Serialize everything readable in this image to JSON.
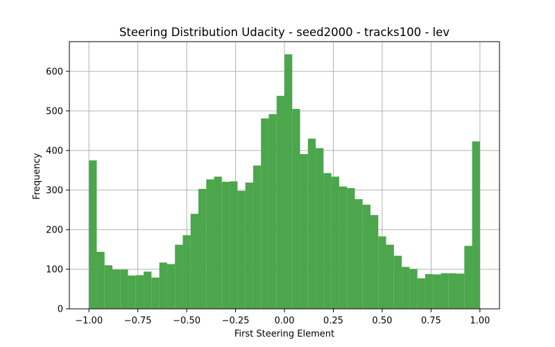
{
  "chart_data": {
    "type": "bar",
    "title": "Steering Distribution Udacity - seed2000 - tracks100 - lev",
    "xlabel": "First Steering Element",
    "ylabel": "Frequency",
    "xlim": [
      -1.1,
      1.1
    ],
    "ylim": [
      0,
      675
    ],
    "xticks": [
      -1.0,
      -0.75,
      -0.5,
      -0.25,
      0.0,
      0.25,
      0.5,
      0.75,
      1.0
    ],
    "xtick_labels": [
      "−1.00",
      "−0.75",
      "−0.50",
      "−0.25",
      "0.00",
      "0.25",
      "0.50",
      "0.75",
      "1.00"
    ],
    "yticks": [
      0,
      100,
      200,
      300,
      400,
      500,
      600
    ],
    "ytick_labels": [
      "0",
      "100",
      "200",
      "300",
      "400",
      "500",
      "600"
    ],
    "grid": true,
    "color": "#4ca64c",
    "bin_start": -1.0,
    "bin_end": 1.0,
    "bins": 50,
    "values": [
      375,
      144,
      110,
      99,
      99,
      84,
      85,
      94,
      79,
      117,
      113,
      162,
      186,
      240,
      303,
      327,
      334,
      321,
      322,
      298,
      319,
      362,
      481,
      492,
      538,
      643,
      505,
      391,
      430,
      406,
      343,
      334,
      309,
      305,
      277,
      263,
      237,
      183,
      162,
      134,
      106,
      101,
      77,
      88,
      87,
      90,
      90,
      89,
      159,
      423
    ]
  }
}
